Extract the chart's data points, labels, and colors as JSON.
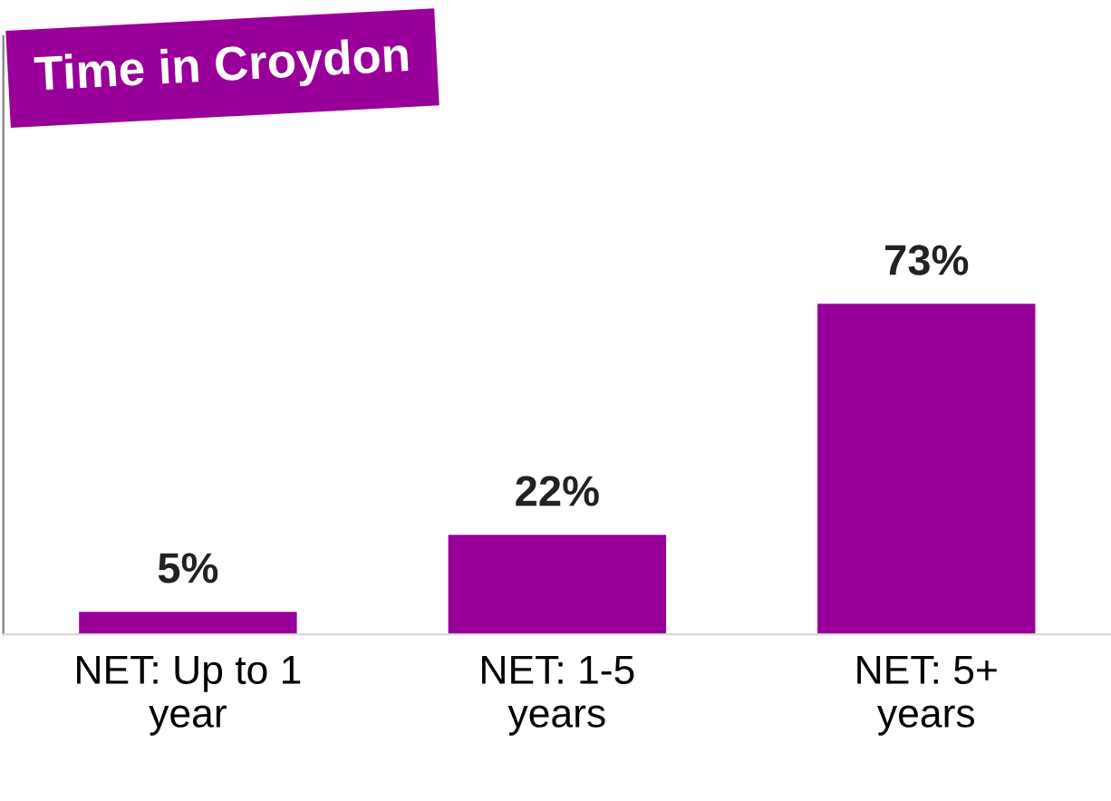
{
  "chart_data": {
    "type": "bar",
    "title": "Time in Croydon",
    "categories": [
      "NET: Up to 1\nyear",
      "NET: 1-5\nyears",
      "NET: 5+\nyears"
    ],
    "values": [
      5,
      22,
      73
    ],
    "color": "#990099",
    "value_labels": [
      "5%",
      "22%",
      "73%"
    ],
    "grid": false,
    "legend": false,
    "tick_labels": "x"
  }
}
